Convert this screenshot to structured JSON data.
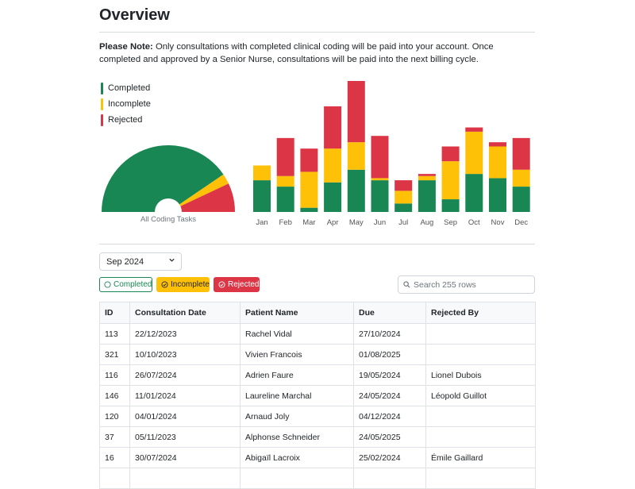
{
  "page": {
    "title": "Overview",
    "note_label": "Please Note:",
    "note_text": " Only consultations with completed clinical coding will be paid into your account. Once completed and approved by a Senior Nurse, consultations will be paid into the next billing cycle."
  },
  "colors": {
    "completed": "#198754",
    "incomplete": "#ffc107",
    "rejected": "#dc3545"
  },
  "legend": [
    {
      "label": "Completed",
      "color": "#198754"
    },
    {
      "label": "Incomplete",
      "color": "#ffc107"
    },
    {
      "label": "Rejected",
      "color": "#dc3545"
    }
  ],
  "gauge": {
    "caption": "All Coding Tasks",
    "completed": 0.81,
    "incomplete": 0.05,
    "rejected": 0.14
  },
  "chart_data": {
    "type": "bar",
    "stacked": true,
    "categories": [
      "Jan",
      "Feb",
      "Mar",
      "Apr",
      "May",
      "Jun",
      "Jul",
      "Aug",
      "Sep",
      "Oct",
      "Nov",
      "Dec"
    ],
    "series": [
      {
        "name": "Completed",
        "color": "#198754",
        "values": [
          30,
          24,
          4,
          28,
          40,
          30,
          8,
          30,
          12,
          36,
          32,
          24
        ]
      },
      {
        "name": "Incomplete",
        "color": "#ffc107",
        "values": [
          14,
          10,
          34,
          32,
          26,
          2,
          12,
          4,
          36,
          40,
          30,
          16
        ]
      },
      {
        "name": "Rejected",
        "color": "#dc3545",
        "values": [
          0,
          36,
          22,
          40,
          58,
          40,
          10,
          2,
          14,
          4,
          4,
          30
        ]
      }
    ],
    "xlabel": "",
    "ylabel": "",
    "ylim": [
      0,
      124
    ],
    "grid": false,
    "legend": "top-left"
  },
  "filters": {
    "month_selected": "Sep 2024",
    "completed_label": "Completed",
    "incomplete_label": "Incomplete",
    "rejected_label": "Rejected",
    "search_placeholder": "Search 255 rows"
  },
  "table": {
    "headers": [
      "ID",
      "Consultation Date",
      "Patient Name",
      "Due",
      "Rejected By"
    ],
    "rows": [
      [
        "113",
        "22/12/2023",
        "Rachel Vidal",
        "27/10/2024",
        ""
      ],
      [
        "321",
        "10/10/2023",
        "Vivien Francois",
        "01/08/2025",
        ""
      ],
      [
        "116",
        "26/07/2024",
        "Adrien Faure",
        "19/05/2024",
        "Lionel Dubois"
      ],
      [
        "146",
        "11/01/2024",
        "Laureline Marchal",
        "24/05/2024",
        "Léopold Guillot"
      ],
      [
        "120",
        "04/01/2024",
        "Arnaud Joly",
        "04/12/2024",
        ""
      ],
      [
        "37",
        "05/11/2023",
        "Alphonse Schneider",
        "24/05/2025",
        ""
      ],
      [
        "16",
        "30/07/2024",
        "Abigaïl Lacroix",
        "25/02/2024",
        "Émile Gaillard"
      ],
      [
        "",
        "",
        "",
        "",
        ""
      ]
    ]
  }
}
